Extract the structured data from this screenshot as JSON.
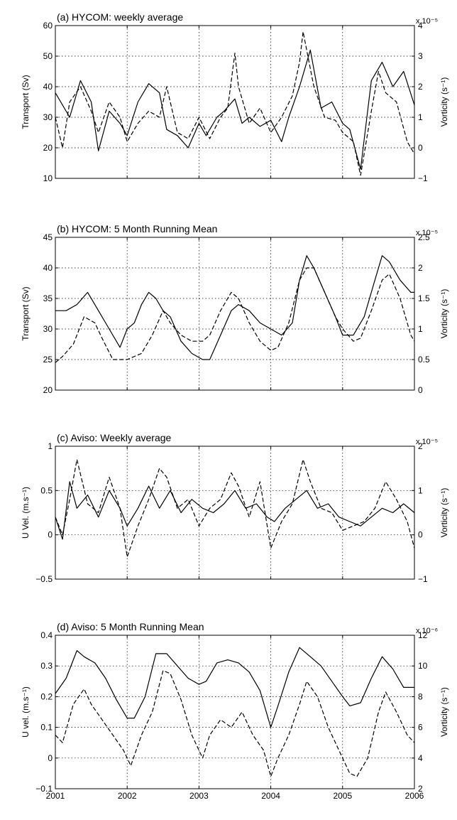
{
  "chart_data": [
    {
      "type": "line",
      "title": "(a) HYCOM: weekly average",
      "ylabel": "Transport (Sv)",
      "y2label": "Vorticity (s⁻¹)",
      "y2_multiplier": "x 10⁻⁵",
      "xlim": [
        2001,
        2006
      ],
      "ylim": [
        10,
        60
      ],
      "y2lim": [
        -1,
        4
      ],
      "xticks": [
        "2001",
        "2002",
        "2003",
        "2004",
        "2005",
        "2006"
      ],
      "yticks": [
        "10",
        "20",
        "30",
        "40",
        "50",
        "60"
      ],
      "y2ticks": [
        "−1",
        "0",
        "1",
        "2",
        "3",
        "4"
      ],
      "grid": true,
      "series": [
        {
          "style": "solid",
          "axis": "left",
          "x": [
            2001.0,
            2001.2,
            2001.35,
            2001.5,
            2001.6,
            2001.75,
            2001.9,
            2002.0,
            2002.15,
            2002.3,
            2002.45,
            2002.55,
            2002.7,
            2002.85,
            2003.0,
            2003.1,
            2003.25,
            2003.35,
            2003.5,
            2003.6,
            2003.7,
            2003.85,
            2004.0,
            2004.15,
            2004.25,
            2004.4,
            2004.55,
            2004.7,
            2004.85,
            2005.0,
            2005.1,
            2005.25,
            2005.4,
            2005.55,
            2005.7,
            2005.85,
            2006.0
          ],
          "y": [
            38,
            30,
            42,
            35,
            19,
            32,
            28,
            24,
            35,
            41,
            38,
            26,
            24,
            20,
            28,
            24,
            30,
            32,
            36,
            28,
            30,
            27,
            29,
            22,
            30,
            40,
            52,
            33,
            35,
            28,
            26,
            13,
            42,
            48,
            40,
            45,
            34
          ]
        },
        {
          "style": "dashed",
          "axis": "right",
          "x": [
            2001.0,
            2001.1,
            2001.2,
            2001.35,
            2001.5,
            2001.6,
            2001.75,
            2001.9,
            2002.0,
            2002.15,
            2002.3,
            2002.45,
            2002.55,
            2002.7,
            2002.85,
            2003.0,
            2003.15,
            2003.3,
            2003.4,
            2003.5,
            2003.55,
            2003.7,
            2003.85,
            2004.0,
            2004.15,
            2004.3,
            2004.4,
            2004.45,
            2004.6,
            2004.75,
            2004.9,
            2005.0,
            2005.15,
            2005.25,
            2005.4,
            2005.5,
            2005.6,
            2005.75,
            2005.9,
            2006.0
          ],
          "y": [
            1.0,
            0.0,
            1.5,
            2.0,
            1.2,
            0.5,
            1.5,
            1.0,
            0.2,
            0.8,
            1.2,
            1.0,
            2.0,
            0.5,
            0.3,
            1.0,
            0.3,
            1.0,
            1.3,
            3.1,
            2.0,
            0.8,
            1.3,
            0.5,
            1.0,
            1.7,
            2.8,
            3.8,
            2.0,
            1.0,
            0.9,
            0.5,
            0.2,
            -0.9,
            1.2,
            2.5,
            1.8,
            1.5,
            0.2,
            -0.2
          ]
        }
      ]
    },
    {
      "type": "line",
      "title": "(b) HYCOM: 5 Month Running Mean",
      "ylabel": "Transport (Sv)",
      "y2label": "Vorticity (s⁻¹)",
      "y2_multiplier": "x 10⁻⁵",
      "xlim": [
        2001,
        2006
      ],
      "ylim": [
        20,
        45
      ],
      "y2lim": [
        0,
        2.5
      ],
      "xticks": [
        "2001",
        "2002",
        "2003",
        "2004",
        "2005",
        "2006"
      ],
      "yticks": [
        "20",
        "25",
        "30",
        "35",
        "40",
        "45"
      ],
      "y2ticks": [
        "0",
        "0.5",
        "1",
        "1.5",
        "2",
        "2.5"
      ],
      "grid": true,
      "series": [
        {
          "style": "solid",
          "axis": "left",
          "x": [
            2001.0,
            2001.15,
            2001.3,
            2001.45,
            2001.6,
            2001.75,
            2001.9,
            2002.0,
            2002.1,
            2002.2,
            2002.3,
            2002.4,
            2002.5,
            2002.6,
            2002.75,
            2002.9,
            2003.05,
            2003.15,
            2003.3,
            2003.45,
            2003.55,
            2003.7,
            2003.85,
            2004.0,
            2004.15,
            2004.3,
            2004.4,
            2004.5,
            2004.6,
            2004.75,
            2004.9,
            2005.0,
            2005.15,
            2005.3,
            2005.45,
            2005.55,
            2005.65,
            2005.8,
            2005.95,
            2006.0
          ],
          "y": [
            33,
            33,
            34,
            36,
            33,
            30,
            27,
            30,
            31,
            34,
            36,
            35,
            33,
            32,
            28,
            26,
            25,
            25,
            29,
            33,
            34,
            33,
            31,
            30,
            29,
            31,
            38,
            42,
            40,
            36,
            32,
            29,
            29,
            32,
            38,
            42,
            41,
            38,
            36,
            36
          ]
        },
        {
          "style": "dashed",
          "axis": "right",
          "x": [
            2001.0,
            2001.1,
            2001.25,
            2001.4,
            2001.55,
            2001.65,
            2001.8,
            2002.0,
            2002.2,
            2002.35,
            2002.5,
            2002.6,
            2002.75,
            2002.9,
            2003.05,
            2003.15,
            2003.3,
            2003.45,
            2003.55,
            2003.7,
            2003.85,
            2004.0,
            2004.1,
            2004.25,
            2004.4,
            2004.5,
            2004.6,
            2004.75,
            2004.9,
            2005.0,
            2005.15,
            2005.25,
            2005.4,
            2005.55,
            2005.65,
            2005.8,
            2005.95,
            2006.0
          ],
          "y": [
            0.45,
            0.55,
            0.75,
            1.2,
            1.1,
            0.85,
            0.5,
            0.5,
            0.6,
            0.9,
            1.3,
            1.1,
            0.9,
            0.8,
            0.8,
            0.9,
            1.3,
            1.6,
            1.5,
            1.1,
            0.8,
            0.65,
            0.7,
            1.1,
            1.8,
            2.0,
            2.0,
            1.6,
            1.2,
            1.0,
            0.8,
            0.85,
            1.3,
            1.8,
            1.9,
            1.5,
            0.9,
            0.8
          ]
        }
      ]
    },
    {
      "type": "line",
      "title": "(c) Aviso: Weekly average",
      "ylabel": "U Vel. (m.s⁻¹)",
      "y2label": "Vorticity (s⁻¹)",
      "y2_multiplier": "x 10⁻⁵",
      "xlim": [
        2001,
        2006
      ],
      "ylim": [
        -0.5,
        1
      ],
      "y2lim": [
        -1,
        2
      ],
      "xticks": [
        "2001",
        "2002",
        "2003",
        "2004",
        "2005",
        "2006"
      ],
      "yticks": [
        "−0.5",
        "0",
        "0.5",
        "1"
      ],
      "y2ticks": [
        "−1",
        "0",
        "1",
        "2"
      ],
      "grid": true,
      "series": [
        {
          "style": "solid",
          "axis": "left",
          "x": [
            2001.0,
            2001.1,
            2001.2,
            2001.3,
            2001.45,
            2001.6,
            2001.75,
            2001.9,
            2002.0,
            2002.15,
            2002.3,
            2002.45,
            2002.6,
            2002.75,
            2002.9,
            2003.05,
            2003.2,
            2003.35,
            2003.5,
            2003.65,
            2003.8,
            2003.95,
            2004.05,
            2004.2,
            2004.35,
            2004.5,
            2004.65,
            2004.8,
            2004.95,
            2005.1,
            2005.25,
            2005.4,
            2005.55,
            2005.7,
            2005.85,
            2006.0
          ],
          "y": [
            0.2,
            -0.05,
            0.6,
            0.3,
            0.45,
            0.2,
            0.5,
            0.3,
            0.1,
            0.3,
            0.55,
            0.3,
            0.5,
            0.25,
            0.4,
            0.3,
            0.25,
            0.35,
            0.5,
            0.3,
            0.35,
            0.2,
            0.15,
            0.3,
            0.4,
            0.5,
            0.3,
            0.35,
            0.2,
            0.15,
            0.1,
            0.2,
            0.3,
            0.25,
            0.35,
            0.25
          ]
        },
        {
          "style": "dashed",
          "axis": "right",
          "x": [
            2001.0,
            2001.1,
            2001.2,
            2001.3,
            2001.45,
            2001.6,
            2001.75,
            2001.9,
            2002.0,
            2002.15,
            2002.3,
            2002.45,
            2002.55,
            2002.7,
            2002.85,
            2003.0,
            2003.15,
            2003.3,
            2003.45,
            2003.55,
            2003.7,
            2003.85,
            2004.0,
            2004.15,
            2004.3,
            2004.45,
            2004.55,
            2004.7,
            2004.85,
            2005.0,
            2005.15,
            2005.3,
            2005.45,
            2005.6,
            2005.75,
            2005.9,
            2006.0
          ],
          "y": [
            0.4,
            0.0,
            0.8,
            1.7,
            0.7,
            0.5,
            1.3,
            0.6,
            -0.5,
            0.2,
            0.8,
            1.5,
            1.3,
            0.6,
            0.8,
            0.2,
            0.6,
            0.8,
            1.4,
            1.1,
            0.4,
            1.2,
            -0.3,
            0.3,
            0.7,
            1.7,
            1.2,
            0.6,
            0.5,
            0.1,
            0.2,
            0.3,
            0.6,
            1.2,
            0.8,
            0.3,
            -0.3
          ]
        }
      ]
    },
    {
      "type": "line",
      "title": "(d) Aviso: 5 Month Running Mean",
      "ylabel": "U vel. (m.s⁻¹)",
      "y2label": "Vorticity (s⁻¹)",
      "y2_multiplier": "x 10⁻⁶",
      "xlim": [
        2001,
        2006
      ],
      "ylim": [
        -0.1,
        0.4
      ],
      "y2lim": [
        2,
        12
      ],
      "xticks": [
        "2001",
        "2002",
        "2003",
        "2004",
        "2005",
        "2006"
      ],
      "yticks": [
        "−0.1",
        "0",
        "0.1",
        "0.2",
        "0.3",
        "0.4"
      ],
      "y2ticks": [
        "2",
        "4",
        "6",
        "8",
        "10",
        "12"
      ],
      "grid": true,
      "series": [
        {
          "style": "solid",
          "axis": "left",
          "x": [
            2001.0,
            2001.15,
            2001.3,
            2001.4,
            2001.55,
            2001.7,
            2001.85,
            2002.0,
            2002.1,
            2002.25,
            2002.4,
            2002.55,
            2002.7,
            2002.85,
            2003.0,
            2003.1,
            2003.25,
            2003.4,
            2003.55,
            2003.7,
            2003.85,
            2004.0,
            2004.1,
            2004.25,
            2004.4,
            2004.55,
            2004.7,
            2004.85,
            2005.0,
            2005.1,
            2005.25,
            2005.4,
            2005.55,
            2005.7,
            2005.85,
            2006.0
          ],
          "y": [
            0.21,
            0.26,
            0.35,
            0.33,
            0.31,
            0.26,
            0.19,
            0.13,
            0.13,
            0.2,
            0.34,
            0.34,
            0.3,
            0.26,
            0.24,
            0.25,
            0.31,
            0.32,
            0.31,
            0.28,
            0.22,
            0.1,
            0.17,
            0.28,
            0.36,
            0.33,
            0.3,
            0.25,
            0.2,
            0.17,
            0.18,
            0.26,
            0.33,
            0.29,
            0.23,
            0.23
          ]
        },
        {
          "style": "dashed",
          "axis": "right",
          "x": [
            2001.0,
            2001.1,
            2001.25,
            2001.4,
            2001.5,
            2001.65,
            2001.8,
            2001.95,
            2002.05,
            2002.2,
            2002.35,
            2002.5,
            2002.6,
            2002.75,
            2002.9,
            2003.05,
            2003.15,
            2003.3,
            2003.45,
            2003.6,
            2003.75,
            2003.9,
            2004.0,
            2004.1,
            2004.25,
            2004.4,
            2004.5,
            2004.65,
            2004.8,
            2004.95,
            2005.1,
            2005.2,
            2005.35,
            2005.5,
            2005.6,
            2005.75,
            2005.9,
            2006.0
          ],
          "y": [
            5.5,
            5.0,
            7.5,
            8.5,
            7.5,
            6.5,
            5.5,
            4.5,
            3.5,
            5.5,
            7.0,
            9.7,
            9.5,
            7.8,
            5.5,
            4.0,
            5.5,
            6.5,
            6.0,
            7.0,
            5.5,
            4.5,
            2.8,
            4.0,
            5.5,
            7.5,
            9.0,
            8.0,
            6.0,
            4.5,
            3.0,
            2.8,
            4.0,
            7.0,
            8.3,
            7.0,
            5.5,
            5.0
          ]
        }
      ]
    }
  ]
}
